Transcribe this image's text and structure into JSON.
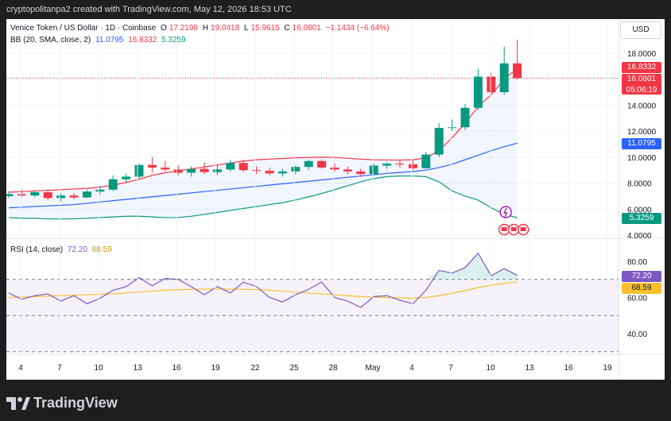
{
  "header": {
    "attribution": "cryptopolitanpa2 created with TradingView.com, May 12, 2026 18:53 UTC"
  },
  "currency_label": "USD",
  "legend": {
    "symbol": "Venice Token / US Dollar · 1D · Coinbase",
    "open_label": "O",
    "open": "17.2198",
    "high_label": "H",
    "high": "19.0418",
    "low_label": "L",
    "low": "15.9615",
    "close_label": "C",
    "close": "16.0801",
    "change": "−1.1434 (−6.64%)",
    "bb_title": "BB (20, SMA, close, 2)",
    "bb_basis": "11.0795",
    "bb_upper": "16.8332",
    "bb_lower": "5.3259",
    "rsi_title": "RSI (14, close)",
    "rsi_value": "72.20",
    "rsi_ma": "68.59"
  },
  "price_tags": {
    "bb_upper": "16.8332",
    "close": "16.0801",
    "countdown": "05:06:19",
    "bb_basis": "11.0795",
    "bb_lower": "5.3259",
    "rsi": "72.20",
    "rsi_ma": "68.59"
  },
  "colors": {
    "up": "#089981",
    "down": "#f23645",
    "bb_upper": "#f23645",
    "bb_basis": "#2962ff",
    "bb_lower": "#089981",
    "rsi": "#7e57c2",
    "rsi_ma": "#fbc02d"
  },
  "price_axis_ticks": [
    "18.0000",
    "14.0000",
    "12.0000",
    "10.0000",
    "8.0000",
    "6.0000",
    "4.0000"
  ],
  "rsi_axis_ticks": [
    "80.00",
    "60.00",
    "40.00"
  ],
  "time_axis_ticks": [
    "4",
    "7",
    "10",
    "13",
    "16",
    "19",
    "22",
    "25",
    "28",
    "May",
    "4",
    "7",
    "10",
    "13",
    "16",
    "19"
  ],
  "footer": {
    "brand": "TradingView"
  },
  "chart_data": {
    "type": "candlestick",
    "timeframe": "1D",
    "price_range": [
      4,
      19.2
    ],
    "candles": [
      {
        "o": 7.0,
        "h": 7.4,
        "l": 6.85,
        "c": 7.15
      },
      {
        "o": 7.15,
        "h": 7.5,
        "l": 6.95,
        "c": 7.05
      },
      {
        "o": 7.05,
        "h": 7.4,
        "l": 6.9,
        "c": 7.3
      },
      {
        "o": 7.3,
        "h": 7.5,
        "l": 6.7,
        "c": 6.85
      },
      {
        "o": 6.85,
        "h": 7.2,
        "l": 6.6,
        "c": 7.05
      },
      {
        "o": 7.05,
        "h": 7.25,
        "l": 6.75,
        "c": 6.9
      },
      {
        "o": 6.9,
        "h": 7.5,
        "l": 6.85,
        "c": 7.35
      },
      {
        "o": 7.35,
        "h": 7.8,
        "l": 7.1,
        "c": 7.5
      },
      {
        "o": 7.5,
        "h": 8.6,
        "l": 7.4,
        "c": 8.3
      },
      {
        "o": 8.3,
        "h": 8.75,
        "l": 8.1,
        "c": 8.5
      },
      {
        "o": 8.5,
        "h": 9.5,
        "l": 8.3,
        "c": 9.4
      },
      {
        "o": 9.4,
        "h": 10.0,
        "l": 8.8,
        "c": 9.2
      },
      {
        "o": 9.2,
        "h": 9.7,
        "l": 8.9,
        "c": 9.05
      },
      {
        "o": 9.05,
        "h": 9.4,
        "l": 8.6,
        "c": 8.8
      },
      {
        "o": 8.8,
        "h": 9.3,
        "l": 8.5,
        "c": 9.1
      },
      {
        "o": 9.1,
        "h": 9.6,
        "l": 8.7,
        "c": 8.85
      },
      {
        "o": 8.85,
        "h": 9.4,
        "l": 8.6,
        "c": 9.05
      },
      {
        "o": 9.05,
        "h": 9.8,
        "l": 8.9,
        "c": 9.55
      },
      {
        "o": 9.55,
        "h": 9.8,
        "l": 8.85,
        "c": 9.0
      },
      {
        "o": 9.0,
        "h": 9.3,
        "l": 8.7,
        "c": 8.95
      },
      {
        "o": 8.95,
        "h": 9.2,
        "l": 8.6,
        "c": 8.75
      },
      {
        "o": 8.75,
        "h": 9.1,
        "l": 8.5,
        "c": 8.9
      },
      {
        "o": 8.9,
        "h": 9.35,
        "l": 8.7,
        "c": 9.25
      },
      {
        "o": 9.25,
        "h": 9.8,
        "l": 9.0,
        "c": 9.7
      },
      {
        "o": 9.7,
        "h": 9.85,
        "l": 9.1,
        "c": 9.2
      },
      {
        "o": 9.2,
        "h": 9.5,
        "l": 8.9,
        "c": 9.05
      },
      {
        "o": 9.05,
        "h": 9.3,
        "l": 8.7,
        "c": 8.9
      },
      {
        "o": 8.9,
        "h": 9.1,
        "l": 8.5,
        "c": 8.7
      },
      {
        "o": 8.7,
        "h": 9.5,
        "l": 8.6,
        "c": 9.35
      },
      {
        "o": 9.35,
        "h": 9.6,
        "l": 9.1,
        "c": 9.5
      },
      {
        "o": 9.5,
        "h": 9.75,
        "l": 9.2,
        "c": 9.45
      },
      {
        "o": 9.45,
        "h": 9.8,
        "l": 9.0,
        "c": 9.15
      },
      {
        "o": 9.15,
        "h": 10.4,
        "l": 9.1,
        "c": 10.2
      },
      {
        "o": 10.2,
        "h": 12.6,
        "l": 10.0,
        "c": 12.25
      },
      {
        "o": 12.25,
        "h": 12.9,
        "l": 12.0,
        "c": 12.3
      },
      {
        "o": 12.3,
        "h": 14.1,
        "l": 12.1,
        "c": 13.8
      },
      {
        "o": 13.8,
        "h": 16.8,
        "l": 13.6,
        "c": 16.2
      },
      {
        "o": 16.2,
        "h": 16.5,
        "l": 14.9,
        "c": 15.0
      },
      {
        "o": 15.0,
        "h": 18.5,
        "l": 14.8,
        "c": 17.22
      },
      {
        "o": 17.22,
        "h": 19.04,
        "l": 15.96,
        "c": 16.08
      }
    ],
    "bb_upper": [
      7.3,
      7.35,
      7.4,
      7.45,
      7.5,
      7.55,
      7.6,
      7.7,
      7.85,
      8.05,
      8.3,
      8.6,
      8.8,
      8.95,
      9.1,
      9.25,
      9.4,
      9.55,
      9.7,
      9.8,
      9.85,
      9.9,
      9.95,
      9.98,
      10.0,
      9.98,
      9.92,
      9.85,
      9.8,
      9.78,
      9.78,
      9.8,
      9.95,
      10.5,
      11.5,
      12.6,
      13.9,
      14.8,
      16.0,
      16.83
    ],
    "bb_basis": [
      6.1,
      6.15,
      6.2,
      6.25,
      6.3,
      6.35,
      6.45,
      6.55,
      6.65,
      6.75,
      6.85,
      6.95,
      7.05,
      7.15,
      7.25,
      7.35,
      7.45,
      7.55,
      7.65,
      7.75,
      7.85,
      7.95,
      8.05,
      8.15,
      8.25,
      8.35,
      8.45,
      8.55,
      8.65,
      8.75,
      8.82,
      8.9,
      9.0,
      9.2,
      9.45,
      9.8,
      10.15,
      10.5,
      10.8,
      11.08
    ],
    "bb_lower": [
      5.35,
      5.3,
      5.3,
      5.25,
      5.25,
      5.25,
      5.3,
      5.35,
      5.4,
      5.45,
      5.45,
      5.4,
      5.35,
      5.35,
      5.45,
      5.6,
      5.75,
      5.9,
      6.05,
      6.2,
      6.35,
      6.5,
      6.7,
      6.95,
      7.2,
      7.5,
      7.8,
      8.1,
      8.35,
      8.5,
      8.55,
      8.55,
      8.5,
      8.1,
      7.4,
      7.0,
      6.7,
      6.1,
      5.6,
      5.33
    ],
    "rsi_range": [
      30,
      90
    ],
    "rsi": [
      62.5,
      59.0,
      61.0,
      62.0,
      58.0,
      61.0,
      56.5,
      59.5,
      64.0,
      66.0,
      71.0,
      66.5,
      70.5,
      70.0,
      66.0,
      61.5,
      66.0,
      62.5,
      68.5,
      66.0,
      60.0,
      57.5,
      61.5,
      64.5,
      68.5,
      60.0,
      58.0,
      54.5,
      60.5,
      61.0,
      58.5,
      56.5,
      64.0,
      75.0,
      73.5,
      76.5,
      84.5,
      72.0,
      76.0,
      72.2
    ],
    "rsi_ma": [
      60.0,
      60.2,
      60.5,
      60.8,
      61.0,
      61.3,
      61.5,
      61.8,
      62.0,
      62.5,
      63.0,
      63.5,
      64.0,
      64.3,
      64.5,
      64.6,
      64.7,
      64.6,
      64.5,
      64.3,
      64.0,
      63.5,
      63.0,
      62.5,
      62.0,
      61.5,
      61.0,
      60.5,
      60.2,
      60.0,
      59.8,
      59.6,
      60.0,
      61.0,
      62.3,
      63.8,
      65.5,
      66.8,
      67.8,
      68.59
    ],
    "rsi_levels": {
      "upper": 70,
      "middle": 50,
      "lower": 30
    }
  }
}
